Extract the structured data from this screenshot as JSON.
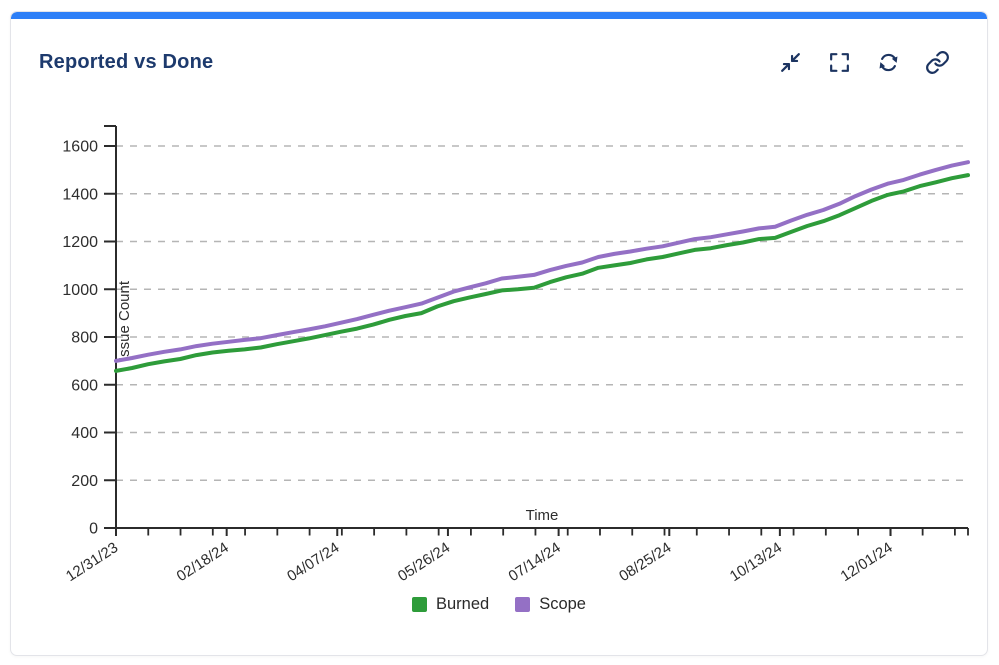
{
  "card": {
    "title": "Reported vs Done",
    "accent_color": "#2d7ff7",
    "title_color": "#1d3a6d",
    "icon_color": "#1c3461",
    "toolbar": [
      {
        "icon": "collapse-icon",
        "action": "collapse"
      },
      {
        "icon": "fullscreen-icon",
        "action": "fullscreen"
      },
      {
        "icon": "refresh-icon",
        "action": "refresh"
      },
      {
        "icon": "link-icon",
        "action": "copy-link"
      }
    ]
  },
  "chart_data": {
    "type": "line",
    "title": "Reported vs Done",
    "xlabel": "Time",
    "ylabel": "Issue Count",
    "ylim": [
      0,
      1700
    ],
    "yticks": [
      0,
      200,
      400,
      600,
      800,
      1000,
      1200,
      1400,
      1600
    ],
    "grid": "horizontal-dashed",
    "grid_color": "#b5b5b5",
    "axis_color": "#2b2b2b",
    "tick_label_color": "#2e2e2e",
    "legend_position": "bottom",
    "x_tick_labels": [
      {
        "label": "12/31/23",
        "pos": 0.0
      },
      {
        "label": "02/18/24",
        "pos": 0.1299
      },
      {
        "label": "04/07/24",
        "pos": 0.2597
      },
      {
        "label": "05/26/24",
        "pos": 0.3896
      },
      {
        "label": "07/14/24",
        "pos": 0.5195
      },
      {
        "label": "08/25/24",
        "pos": 0.6494
      },
      {
        "label": "10/13/24",
        "pos": 0.7792
      },
      {
        "label": "12/01/24",
        "pos": 0.9091
      }
    ],
    "x_minor_tick_frac_step": 0.03787,
    "series": [
      {
        "name": "Burned",
        "color": "#2e9c3a",
        "values": [
          658,
          670,
          686,
          698,
          708,
          724,
          735,
          742,
          748,
          756,
          770,
          782,
          794,
          808,
          822,
          835,
          852,
          872,
          888,
          900,
          928,
          950,
          966,
          980,
          995,
          1000,
          1006,
          1030,
          1050,
          1065,
          1090,
          1100,
          1110,
          1125,
          1135,
          1150,
          1165,
          1172,
          1185,
          1196,
          1210,
          1215,
          1240,
          1265,
          1285,
          1310,
          1340,
          1370,
          1395,
          1410,
          1432,
          1448,
          1465,
          1478
        ]
      },
      {
        "name": "Scope",
        "color": "#9470c5",
        "values": [
          700,
          712,
          726,
          738,
          748,
          762,
          772,
          780,
          788,
          795,
          808,
          820,
          832,
          845,
          860,
          875,
          893,
          910,
          925,
          940,
          965,
          990,
          1008,
          1025,
          1045,
          1052,
          1060,
          1080,
          1098,
          1112,
          1135,
          1148,
          1158,
          1170,
          1180,
          1195,
          1210,
          1218,
          1230,
          1242,
          1255,
          1262,
          1288,
          1312,
          1332,
          1358,
          1390,
          1418,
          1442,
          1458,
          1480,
          1500,
          1518,
          1532
        ]
      }
    ]
  }
}
